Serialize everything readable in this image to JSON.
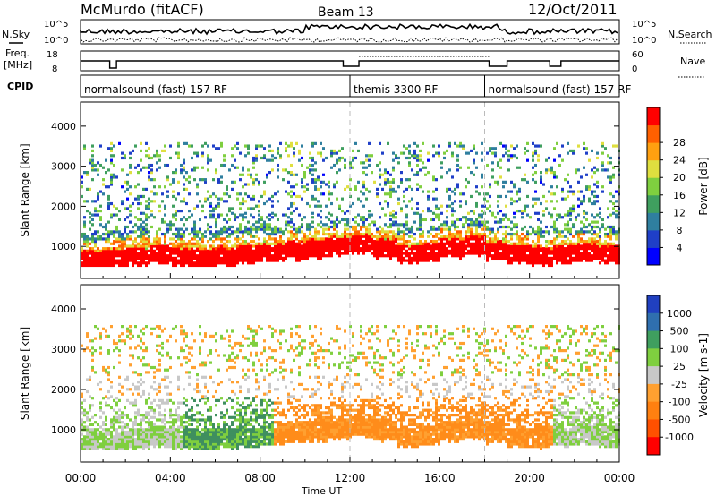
{
  "header": {
    "station": "McMurdo (fitACF)",
    "beam": "Beam 13",
    "date": "12/Oct/2011"
  },
  "sky_panel": {
    "left_label": "N.Sky",
    "right_label": "N.Search",
    "left_ticks": [
      "10^5",
      "10^0"
    ],
    "right_ticks": [
      "10^5",
      "10^0"
    ]
  },
  "freq_panel": {
    "left_label_1": "Freq.",
    "left_label_2": "[MHz]",
    "left_ticks": [
      "18",
      "8"
    ],
    "right_label": "Nave",
    "right_ticks": [
      "60",
      "0"
    ]
  },
  "cpid": {
    "label": "CPID",
    "segments": [
      {
        "name": "normalsound (fast) 157 RF",
        "start_hour": 0,
        "end_hour": 12
      },
      {
        "name": "themis 3300 RF",
        "start_hour": 12,
        "end_hour": 18
      },
      {
        "name": "normalsound (fast) 157 RF",
        "start_hour": 18,
        "end_hour": 24
      }
    ]
  },
  "chart_data": [
    {
      "type": "heatmap",
      "name": "power",
      "ylabel": "Slant Range [km]",
      "yticks": [
        "1000",
        "2000",
        "3000",
        "4000"
      ],
      "ylim": [
        200,
        4600
      ],
      "xlim": [
        0,
        24
      ],
      "colorbar": {
        "label": "Power [dB]",
        "ticks": [
          "4",
          "8",
          "12",
          "16",
          "20",
          "24",
          "28"
        ],
        "colors": [
          "#0000ff",
          "#1f3fc8",
          "#2f7f9f",
          "#3f9f5f",
          "#7fcf3f",
          "#dfdf3f",
          "#ffa010",
          "#ff6000",
          "#ff0000"
        ]
      },
      "main_band_center_km": [
        600,
        650,
        700,
        750,
        700,
        650,
        700,
        750,
        800,
        850,
        900,
        950,
        1000,
        900,
        750,
        800,
        900,
        950,
        850,
        750,
        700,
        750,
        800,
        750,
        700
      ]
    },
    {
      "type": "heatmap",
      "name": "velocity",
      "ylabel": "Slant Range [km]",
      "yticks": [
        "1000",
        "2000",
        "3000",
        "4000"
      ],
      "ylim": [
        200,
        4600
      ],
      "xlim": [
        0,
        24
      ],
      "xlabel": "Time UT",
      "xticks": [
        "00:00",
        "04:00",
        "08:00",
        "12:00",
        "16:00",
        "20:00",
        "00:00"
      ],
      "colorbar": {
        "label": "Velocity [m s-1]",
        "ticks": [
          "1000",
          "500",
          "100",
          "25",
          "-25",
          "-100",
          "-500",
          "-1000"
        ],
        "colors": [
          "#2040c0",
          "#2f6faf",
          "#3f9f5f",
          "#7fcf3f",
          "#c8c8c8",
          "#ffa030",
          "#ff8010",
          "#ff5000",
          "#ff0000"
        ]
      }
    }
  ]
}
